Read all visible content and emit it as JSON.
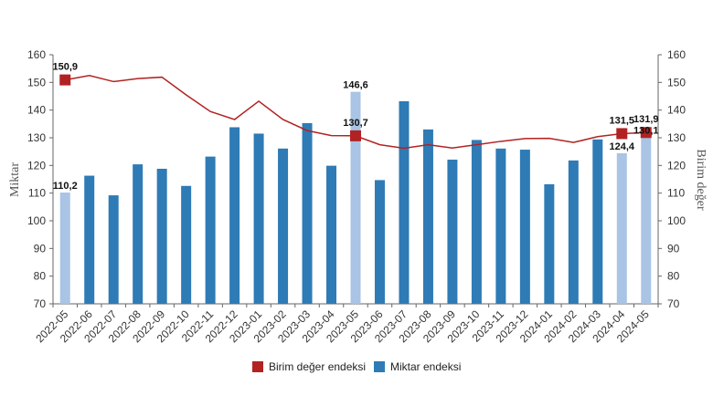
{
  "chart_data": {
    "type": "bar",
    "title": "",
    "ylabel_left": "Miktar",
    "ylabel_right": "Birim değer",
    "ylim_left": [
      70,
      160
    ],
    "ylim_right": [
      70,
      160
    ],
    "yticks_left": [
      "70",
      "80",
      "90",
      "100",
      "110",
      "120",
      "130",
      "140",
      "150",
      "160"
    ],
    "yticks_right": [
      "70",
      "80",
      "90",
      "100",
      "110",
      "120",
      "130",
      "140",
      "150",
      "160"
    ],
    "categories": [
      "2022-05",
      "2022-06",
      "2022-07",
      "2022-08",
      "2022-09",
      "2022-10",
      "2022-11",
      "2022-12",
      "2023-01",
      "2023-02",
      "2023-03",
      "2023-04",
      "2023-05",
      "2023-06",
      "2023-07",
      "2023-08",
      "2023-09",
      "2023-10",
      "2023-11",
      "2023-12",
      "2024-01",
      "2024-02",
      "2024-03",
      "2024-04",
      "2024-05"
    ],
    "series": [
      {
        "name": "Miktar endeksi",
        "kind": "bar",
        "color": "#2e7bb6",
        "highlight_color": "#a9c4e4",
        "highlight_indices": [
          0,
          12,
          23,
          24
        ],
        "values": [
          110.2,
          116.3,
          109.2,
          120.4,
          118.8,
          112.6,
          123.2,
          133.8,
          131.5,
          126.1,
          135.3,
          119.9,
          146.6,
          114.7,
          143.2,
          133.0,
          122.1,
          129.2,
          126.1,
          125.7,
          113.2,
          121.8,
          129.4,
          124.4,
          130.1
        ]
      },
      {
        "name": "Birim değer endeksi",
        "kind": "line",
        "color": "#b22222",
        "marker_indices": [
          0,
          12,
          23,
          24
        ],
        "values": [
          150.9,
          152.5,
          150.3,
          151.4,
          151.9,
          145.5,
          139.5,
          136.6,
          143.2,
          136.6,
          132.6,
          130.8,
          130.7,
          127.5,
          126.2,
          127.5,
          126.3,
          127.5,
          128.7,
          129.7,
          129.8,
          128.3,
          130.4,
          131.5,
          131.9
        ]
      }
    ],
    "data_labels": {
      "bar": [
        {
          "index": 0,
          "text": "110,2"
        },
        {
          "index": 12,
          "text": "146,6"
        },
        {
          "index": 23,
          "text": "124,4"
        },
        {
          "index": 24,
          "text": "130,1"
        }
      ],
      "line": [
        {
          "index": 0,
          "text": "150,9"
        },
        {
          "index": 12,
          "text": "130,7"
        },
        {
          "index": 23,
          "text": "131,5"
        },
        {
          "index": 24,
          "text": "131,9"
        }
      ]
    },
    "legend": {
      "placement": "bottom",
      "items": [
        {
          "label": "Birim değer endeksi",
          "color": "#b22222"
        },
        {
          "label": "Miktar endeksi",
          "color": "#2e7bb6"
        }
      ]
    },
    "grid": false
  }
}
